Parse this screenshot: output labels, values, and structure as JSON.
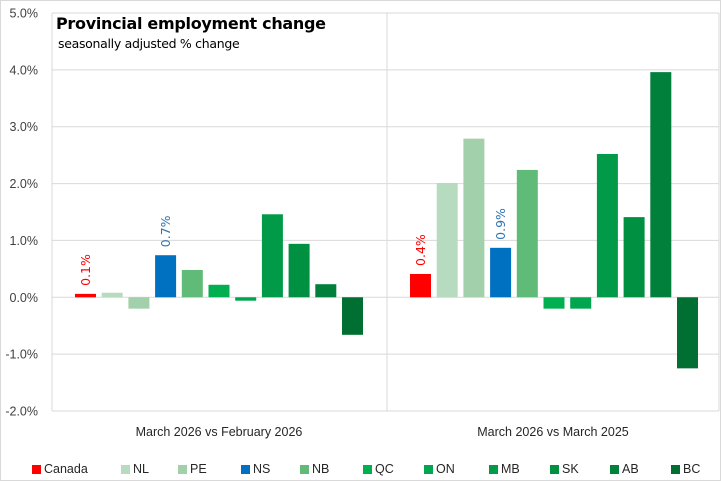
{
  "chart_data": {
    "type": "bar",
    "title": "Provincial employment change",
    "subtitle": "seasonally adjusted % change",
    "xlabel": "",
    "ylabel": "",
    "ylim": [
      -2.0,
      5.0
    ],
    "yticks": [
      "5.0%",
      "4.0%",
      "3.0%",
      "2.0%",
      "1.0%",
      "0.0%",
      "-1.0%",
      "-2.0%"
    ],
    "ytick_values": [
      5,
      4,
      3,
      2,
      1,
      0,
      -1,
      -2
    ],
    "grid": true,
    "legend_position": "bottom",
    "categories": [
      "March 2026 vs February 2026",
      "March 2026 vs March 2025"
    ],
    "series": [
      {
        "name": "Canada",
        "color": "#FF0000",
        "values": [
          0.06,
          0.41
        ],
        "labels": [
          "0.1%",
          "0.4%"
        ],
        "label_color": "#FF0000"
      },
      {
        "name": "NL",
        "color": "#B7DBBF",
        "values": [
          0.08,
          2.01
        ]
      },
      {
        "name": "PE",
        "color": "#A2D0AA",
        "values": [
          -0.2,
          2.79
        ]
      },
      {
        "name": "NS",
        "color": "#0070C0",
        "values": [
          0.74,
          0.87
        ],
        "labels": [
          "0.7%",
          "0.9%"
        ],
        "label_color": "#2E75B6"
      },
      {
        "name": "NB",
        "color": "#60BB78",
        "values": [
          0.48,
          2.24
        ]
      },
      {
        "name": "QC",
        "color": "#00B050",
        "values": [
          0.22,
          -0.2
        ]
      },
      {
        "name": "ON",
        "color": "#00A64F",
        "values": [
          -0.06,
          -0.2
        ]
      },
      {
        "name": "MB",
        "color": "#009A48",
        "values": [
          1.46,
          2.52
        ]
      },
      {
        "name": "SK",
        "color": "#009042",
        "values": [
          0.94,
          1.41
        ]
      },
      {
        "name": "AB",
        "color": "#00803A",
        "values": [
          0.23,
          3.96
        ]
      },
      {
        "name": "BC",
        "color": "#006F31",
        "values": [
          -0.66,
          -1.25
        ]
      }
    ]
  }
}
